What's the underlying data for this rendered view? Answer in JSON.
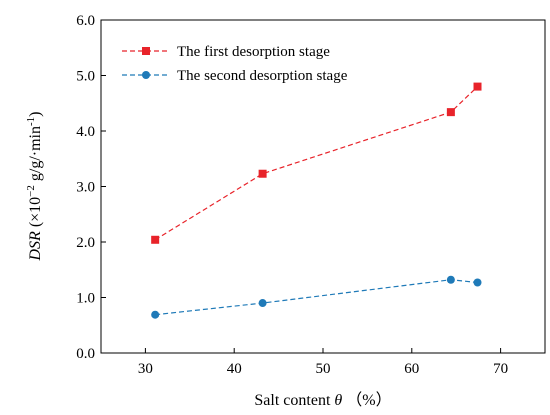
{
  "chart_data": {
    "type": "line",
    "xlabel": {
      "pre": "Salt content ",
      "symbol": "θ",
      "post": " （%）"
    },
    "ylabel": {
      "italic": "DSR",
      "pre": " (×10",
      "exp": "−2",
      "mid": " g/g/·min",
      "exp2": "-1",
      "post": ")"
    },
    "xlim": [
      25,
      75
    ],
    "ylim": [
      0,
      6
    ],
    "xticks": [
      30,
      40,
      50,
      60,
      70
    ],
    "yticks": [
      0.0,
      1.0,
      2.0,
      3.0,
      4.0,
      5.0,
      6.0
    ],
    "x": [
      31.1,
      43.2,
      64.4,
      67.4
    ],
    "series": [
      {
        "name": "The first desorption stage",
        "values": [
          2.04,
          3.23,
          4.34,
          4.8
        ],
        "color": "#e8232a",
        "marker": "square"
      },
      {
        "name": "The second desorption stage",
        "values": [
          0.69,
          0.9,
          1.32,
          1.27
        ],
        "color": "#1f7ab8",
        "marker": "circle"
      }
    ],
    "grid": false,
    "legend_position": "top-left"
  }
}
